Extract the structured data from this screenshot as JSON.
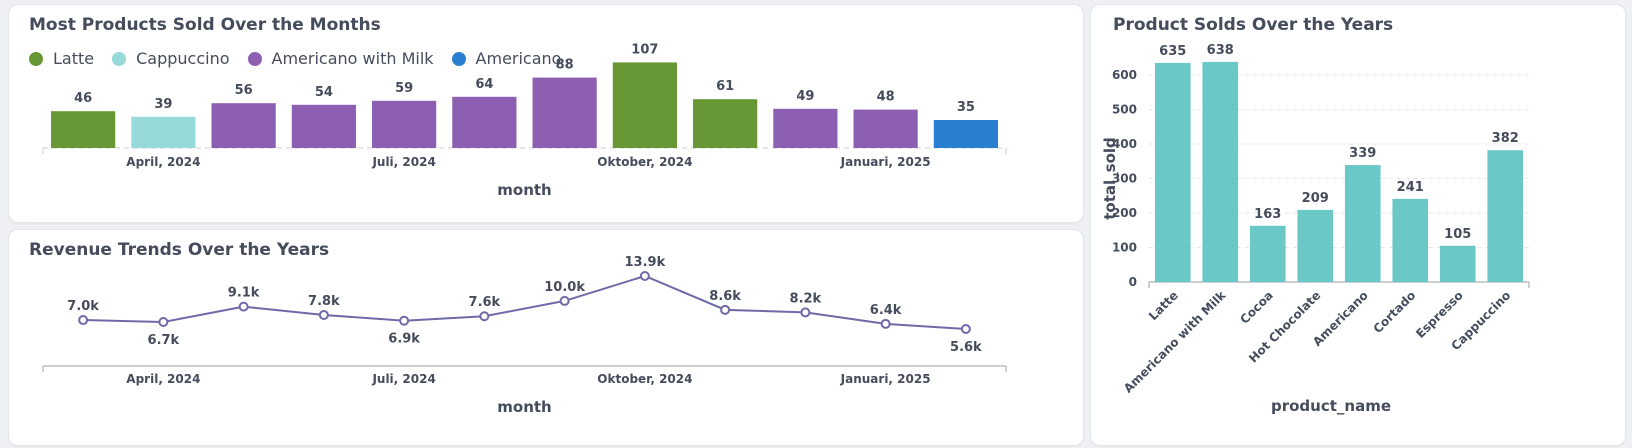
{
  "chart_data": [
    {
      "type": "bar",
      "title": "Most Products Sold Over the Months",
      "xlabel": "month",
      "ylabel": "",
      "categories": [
        "2024-03",
        "2024-04",
        "2024-05",
        "2024-06",
        "2024-07",
        "2024-08",
        "2024-09",
        "2024-10",
        "2024-11",
        "2024-12",
        "2025-01",
        "2025-02"
      ],
      "tick_labels": [
        {
          "category": "2024-04",
          "label": "April, 2024"
        },
        {
          "category": "2024-07",
          "label": "Juli, 2024"
        },
        {
          "category": "2024-10",
          "label": "Oktober, 2024"
        },
        {
          "category": "2025-01",
          "label": "Januari, 2025"
        }
      ],
      "values": [
        46,
        39,
        56,
        54,
        59,
        64,
        88,
        107,
        61,
        49,
        48,
        35
      ],
      "product": [
        "Latte",
        "Cappuccino",
        "Americano with Milk",
        "Americano with Milk",
        "Americano with Milk",
        "Americano with Milk",
        "Americano with Milk",
        "Latte",
        "Latte",
        "Americano with Milk",
        "Americano with Milk",
        "Americano"
      ],
      "legend": [
        {
          "name": "Latte",
          "color": "#689835"
        },
        {
          "name": "Cappuccino",
          "color": "#98d9d9"
        },
        {
          "name": "Americano with Milk",
          "color": "#8c5fb2"
        },
        {
          "name": "Americano",
          "color": "#2b7fd1"
        }
      ],
      "legend_position": "top-left",
      "grid": false,
      "ylim": [
        0,
        110
      ]
    },
    {
      "type": "line",
      "title": "Revenue Trends Over the Years",
      "xlabel": "month",
      "ylabel": "",
      "x": [
        "2024-03",
        "2024-04",
        "2024-05",
        "2024-06",
        "2024-07",
        "2024-08",
        "2024-09",
        "2024-10",
        "2024-11",
        "2024-12",
        "2025-01",
        "2025-02"
      ],
      "tick_labels": [
        {
          "category": "2024-04",
          "label": "April, 2024"
        },
        {
          "category": "2024-07",
          "label": "Juli, 2024"
        },
        {
          "category": "2024-10",
          "label": "Oktober, 2024"
        },
        {
          "category": "2025-01",
          "label": "Januari, 2025"
        }
      ],
      "values": [
        7.0,
        6.7,
        9.1,
        7.8,
        6.9,
        7.6,
        10.0,
        13.9,
        8.6,
        8.2,
        6.4,
        5.6
      ],
      "value_labels": [
        "7.0k",
        "6.7k",
        "9.1k",
        "7.8k",
        "6.9k",
        "7.6k",
        "10.0k",
        "13.9k",
        "8.6k",
        "8.2k",
        "6.4k",
        "5.6k"
      ],
      "label_position": [
        "above",
        "below",
        "above",
        "above",
        "below",
        "above",
        "above",
        "above",
        "above",
        "above",
        "above",
        "below"
      ],
      "color": "#6e6aa8",
      "grid": false,
      "ylim": [
        5,
        14
      ]
    },
    {
      "type": "bar",
      "title": "Product Solds Over the Years",
      "xlabel": "product_name",
      "ylabel": "total_sold",
      "categories": [
        "Latte",
        "Americano with Milk",
        "Cocoa",
        "Hot Chocolate",
        "Americano",
        "Cortado",
        "Espresso",
        "Cappuccino"
      ],
      "values": [
        635,
        638,
        163,
        209,
        339,
        241,
        105,
        382
      ],
      "yticks": [
        0,
        100,
        200,
        300,
        400,
        500,
        600
      ],
      "ylim": [
        0,
        700
      ],
      "color": "#6ac8c7",
      "grid": true
    }
  ]
}
